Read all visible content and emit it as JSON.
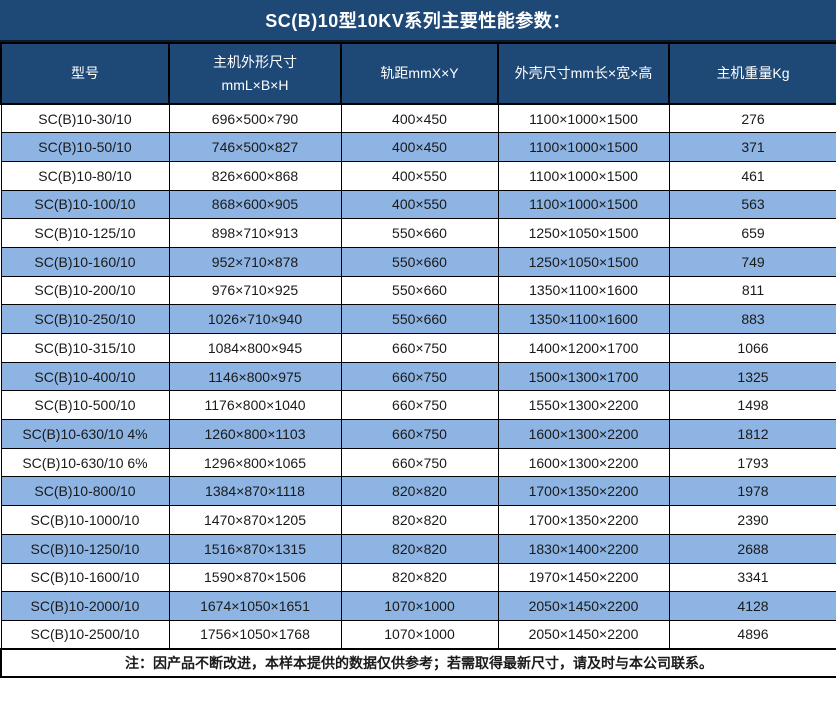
{
  "title": "SC(B)10型10KV系列主要性能参数：",
  "columns": [
    {
      "title": "型号"
    },
    {
      "title": "主机外形尺寸",
      "subtitle": "mmL×B×H"
    },
    {
      "title": "轨距mmX×Y"
    },
    {
      "title": "外壳尺寸mm长×宽×高"
    },
    {
      "title": "主机重量Kg"
    }
  ],
  "rows": [
    [
      "SC(B)10-30/10",
      "696×500×790",
      "400×450",
      "1100×1000×1500",
      "276"
    ],
    [
      "SC(B)10-50/10",
      "746×500×827",
      "400×450",
      "1100×1000×1500",
      "371"
    ],
    [
      "SC(B)10-80/10",
      "826×600×868",
      "400×550",
      "1100×1000×1500",
      "461"
    ],
    [
      "SC(B)10-100/10",
      "868×600×905",
      "400×550",
      "1100×1000×1500",
      "563"
    ],
    [
      "SC(B)10-125/10",
      "898×710×913",
      "550×660",
      "1250×1050×1500",
      "659"
    ],
    [
      "SC(B)10-160/10",
      "952×710×878",
      "550×660",
      "1250×1050×1500",
      "749"
    ],
    [
      "SC(B)10-200/10",
      "976×710×925",
      "550×660",
      "1350×1100×1600",
      "811"
    ],
    [
      "SC(B)10-250/10",
      "1026×710×940",
      "550×660",
      "1350×1100×1600",
      "883"
    ],
    [
      "SC(B)10-315/10",
      "1084×800×945",
      "660×750",
      "1400×1200×1700",
      "1066"
    ],
    [
      "SC(B)10-400/10",
      "1146×800×975",
      "660×750",
      "1500×1300×1700",
      "1325"
    ],
    [
      "SC(B)10-500/10",
      "1176×800×1040",
      "660×750",
      "1550×1300×2200",
      "1498"
    ],
    [
      "SC(B)10-630/10 4%",
      "1260×800×1103",
      "660×750",
      "1600×1300×2200",
      "1812"
    ],
    [
      "SC(B)10-630/10 6%",
      "1296×800×1065",
      "660×750",
      "1600×1300×2200",
      "1793"
    ],
    [
      "SC(B)10-800/10",
      "1384×870×1118",
      "820×820",
      "1700×1350×2200",
      "1978"
    ],
    [
      "SC(B)10-1000/10",
      "1470×870×1205",
      "820×820",
      "1700×1350×2200",
      "2390"
    ],
    [
      "SC(B)10-1250/10",
      "1516×870×1315",
      "820×820",
      "1830×1400×2200",
      "2688"
    ],
    [
      "SC(B)10-1600/10",
      "1590×870×1506",
      "820×820",
      "1970×1450×2200",
      "3341"
    ],
    [
      "SC(B)10-2000/10",
      "1674×1050×1651",
      "1070×1000",
      "2050×1450×2200",
      "4128"
    ],
    [
      "SC(B)10-2500/10",
      "1756×1050×1768",
      "1070×1000",
      "2050×1450×2200",
      "4896"
    ]
  ],
  "note": "注：因产品不断改进，本样本提供的数据仅供参考；若需取得最新尺寸，请及时与本公司联系。",
  "colors": {
    "header_bg": "#1E4876",
    "alt_row_bg": "#8DB4E2",
    "border": "#000000",
    "text": "#1A1A1A",
    "header_text": "#FFFFFF"
  }
}
